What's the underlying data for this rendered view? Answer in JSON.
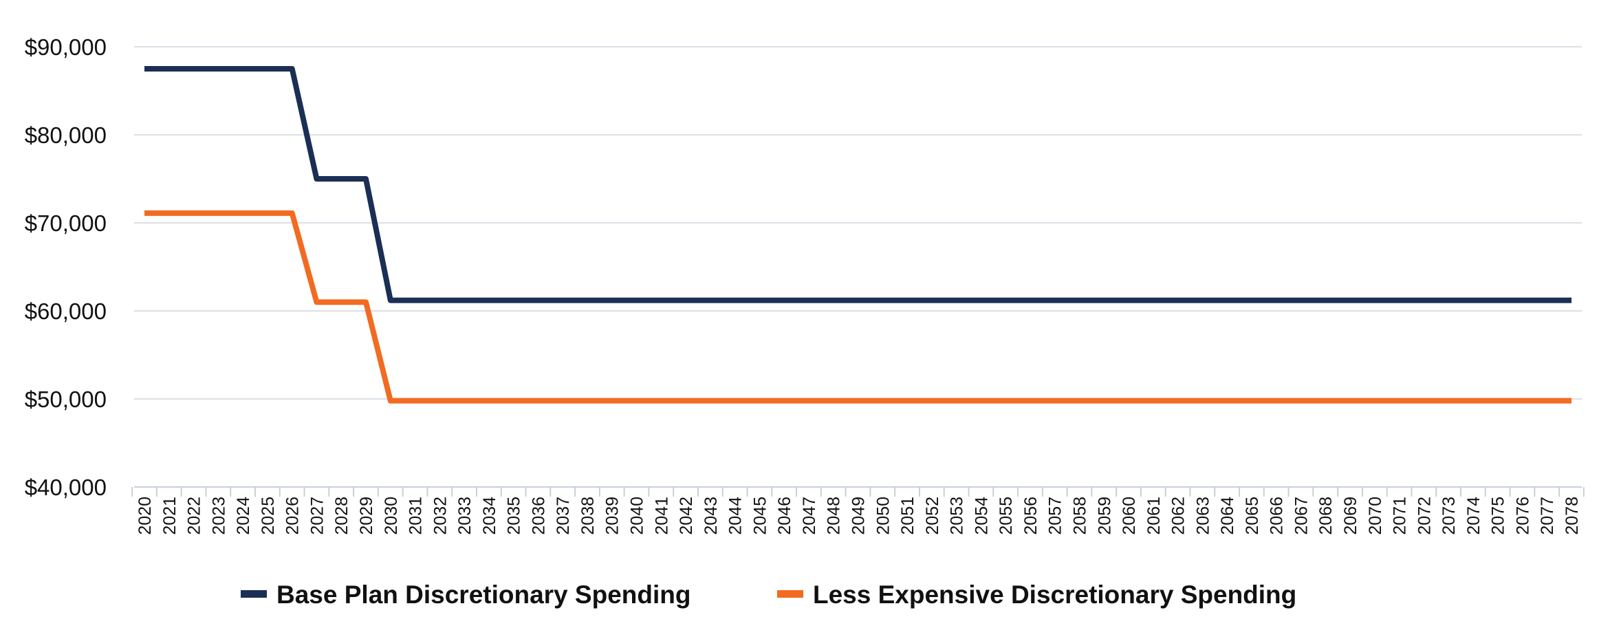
{
  "chart_data": {
    "type": "line",
    "x": [
      2020,
      2021,
      2022,
      2023,
      2024,
      2025,
      2026,
      2027,
      2028,
      2029,
      2030,
      2031,
      2032,
      2033,
      2034,
      2035,
      2036,
      2037,
      2038,
      2039,
      2040,
      2041,
      2042,
      2043,
      2044,
      2045,
      2046,
      2047,
      2048,
      2049,
      2050,
      2051,
      2052,
      2053,
      2054,
      2055,
      2056,
      2057,
      2058,
      2059,
      2060,
      2061,
      2062,
      2063,
      2064,
      2065,
      2066,
      2067,
      2068,
      2069,
      2070,
      2071,
      2072,
      2073,
      2074,
      2075,
      2076,
      2077,
      2078
    ],
    "x_tick_labels": [
      "2020",
      "2021",
      "2022",
      "2023",
      "2024",
      "2025",
      "2026",
      "2027",
      "2028",
      "2029",
      "2030",
      "2031",
      "2032",
      "2033",
      "2034",
      "2035",
      "2036",
      "2037",
      "2038",
      "2039",
      "2040",
      "2041",
      "2042",
      "2043",
      "2044",
      "2045",
      "2046",
      "2047",
      "2048",
      "2049",
      "2050",
      "2051",
      "2052",
      "2053",
      "2054",
      "2055",
      "2056",
      "2057",
      "2058",
      "2059",
      "2060",
      "2061",
      "2062",
      "2063",
      "2064",
      "2065",
      "2066",
      "2067",
      "2068",
      "2069",
      "2070",
      "2071",
      "2072",
      "2073",
      "2074",
      "2075",
      "2076",
      "2077",
      "2078"
    ],
    "series": [
      {
        "name": "Base Plan Discretionary Spending",
        "color": "#1b2f55",
        "values": [
          87500,
          87500,
          87500,
          87500,
          87500,
          87500,
          87500,
          75000,
          75000,
          75000,
          61200,
          61200,
          61200,
          61200,
          61200,
          61200,
          61200,
          61200,
          61200,
          61200,
          61200,
          61200,
          61200,
          61200,
          61200,
          61200,
          61200,
          61200,
          61200,
          61200,
          61200,
          61200,
          61200,
          61200,
          61200,
          61200,
          61200,
          61200,
          61200,
          61200,
          61200,
          61200,
          61200,
          61200,
          61200,
          61200,
          61200,
          61200,
          61200,
          61200,
          61200,
          61200,
          61200,
          61200,
          61200,
          61200,
          61200,
          61200,
          61200
        ]
      },
      {
        "name": "Less Expensive Discretionary Spending",
        "color": "#f26b21",
        "values": [
          71100,
          71100,
          71100,
          71100,
          71100,
          71100,
          71100,
          61000,
          61000,
          61000,
          49800,
          49800,
          49800,
          49800,
          49800,
          49800,
          49800,
          49800,
          49800,
          49800,
          49800,
          49800,
          49800,
          49800,
          49800,
          49800,
          49800,
          49800,
          49800,
          49800,
          49800,
          49800,
          49800,
          49800,
          49800,
          49800,
          49800,
          49800,
          49800,
          49800,
          49800,
          49800,
          49800,
          49800,
          49800,
          49800,
          49800,
          49800,
          49800,
          49800,
          49800,
          49800,
          49800,
          49800,
          49800,
          49800,
          49800,
          49800,
          49800
        ]
      }
    ],
    "y_ticks": [
      40000,
      50000,
      60000,
      70000,
      80000,
      90000
    ],
    "y_tick_labels": [
      "$40,000",
      "$50,000",
      "$60,000",
      "$70,000",
      "$80,000",
      "$90,000"
    ],
    "ylim": [
      40000,
      90000
    ],
    "grid": true,
    "legend_position": "bottom"
  }
}
